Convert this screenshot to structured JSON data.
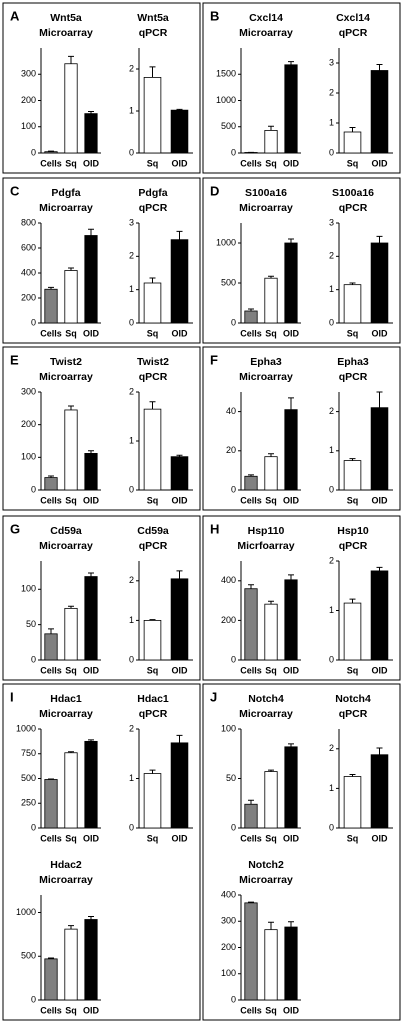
{
  "chart_data": [
    {
      "type": "bar",
      "panel_label": "A",
      "title": "Wnt5a",
      "subtitle": "Microarray",
      "categories": [
        "Cells",
        "Sq",
        "OID"
      ],
      "values": [
        5,
        340,
        150
      ],
      "errors": [
        2,
        28,
        8
      ],
      "colors": [
        "#808080",
        "#ffffff",
        "#000000"
      ],
      "ylim": [
        0,
        400
      ],
      "yticks": [
        0,
        100,
        200,
        300
      ]
    },
    {
      "type": "bar",
      "title": "Wnt5a",
      "subtitle": "qPCR",
      "categories": [
        "Sq",
        "OID"
      ],
      "values": [
        1.8,
        1.02
      ],
      "errors": [
        0.25,
        0.02
      ],
      "colors": [
        "#ffffff",
        "#000000"
      ],
      "ylim": [
        0,
        2.5
      ],
      "yticks": [
        0,
        1,
        2
      ]
    },
    {
      "type": "bar",
      "panel_label": "B",
      "title": "Cxcl14",
      "subtitle": "Microarray",
      "categories": [
        "Cells",
        "Sq",
        "OID"
      ],
      "values": [
        10,
        430,
        1680
      ],
      "errors": [
        2,
        80,
        60
      ],
      "colors": [
        "#808080",
        "#ffffff",
        "#000000"
      ],
      "ylim": [
        0,
        2000
      ],
      "yticks": [
        0,
        500,
        1000,
        1500
      ]
    },
    {
      "type": "bar",
      "title": "Cxcl14",
      "subtitle": "qPCR",
      "categories": [
        "Sq",
        "OID"
      ],
      "values": [
        0.7,
        2.75
      ],
      "errors": [
        0.15,
        0.2
      ],
      "colors": [
        "#ffffff",
        "#000000"
      ],
      "ylim": [
        0,
        3.5
      ],
      "yticks": [
        0,
        1,
        2,
        3
      ]
    },
    {
      "type": "bar",
      "panel_label": "C",
      "title": "Pdgfa",
      "subtitle": "Microarray",
      "categories": [
        "Cells",
        "Sq",
        "OID"
      ],
      "values": [
        270,
        420,
        700
      ],
      "errors": [
        15,
        20,
        50
      ],
      "colors": [
        "#808080",
        "#ffffff",
        "#000000"
      ],
      "ylim": [
        0,
        800
      ],
      "yticks": [
        0,
        200,
        400,
        600,
        800
      ]
    },
    {
      "type": "bar",
      "title": "Pdgfa",
      "subtitle": "qPCR",
      "categories": [
        "Sq",
        "OID"
      ],
      "values": [
        1.2,
        2.5
      ],
      "errors": [
        0.15,
        0.25
      ],
      "colors": [
        "#ffffff",
        "#000000"
      ],
      "ylim": [
        0,
        3
      ],
      "yticks": [
        0,
        1,
        2,
        3
      ]
    },
    {
      "type": "bar",
      "panel_label": "D",
      "title": "S100a16",
      "subtitle": "Microarray",
      "categories": [
        "Cells",
        "Sq",
        "OID"
      ],
      "values": [
        150,
        560,
        1000
      ],
      "errors": [
        25,
        25,
        50
      ],
      "colors": [
        "#808080",
        "#ffffff",
        "#000000"
      ],
      "ylim": [
        0,
        1250
      ],
      "yticks": [
        0,
        500,
        1000
      ]
    },
    {
      "type": "bar",
      "title": "S100a16",
      "subtitle": "qPCR",
      "categories": [
        "Sq",
        "OID"
      ],
      "values": [
        1.15,
        2.4
      ],
      "errors": [
        0.05,
        0.2
      ],
      "colors": [
        "#ffffff",
        "#000000"
      ],
      "ylim": [
        0,
        3
      ],
      "yticks": [
        0,
        1,
        2,
        3
      ]
    },
    {
      "type": "bar",
      "panel_label": "E",
      "title": "Twist2",
      "subtitle": "Microarray",
      "categories": [
        "Cells",
        "Sq",
        "OID"
      ],
      "values": [
        38,
        245,
        112
      ],
      "errors": [
        5,
        12,
        8
      ],
      "colors": [
        "#808080",
        "#ffffff",
        "#000000"
      ],
      "ylim": [
        0,
        300
      ],
      "yticks": [
        0,
        100,
        200,
        300
      ]
    },
    {
      "type": "bar",
      "title": "Twist2",
      "subtitle": "qPCR",
      "categories": [
        "Sq",
        "OID"
      ],
      "values": [
        1.65,
        0.68
      ],
      "errors": [
        0.15,
        0.03
      ],
      "colors": [
        "#ffffff",
        "#000000"
      ],
      "ylim": [
        0,
        2
      ],
      "yticks": [
        0,
        1,
        2
      ]
    },
    {
      "type": "bar",
      "panel_label": "F",
      "title": "Epha3",
      "subtitle": "Microarray",
      "categories": [
        "Cells",
        "Sq",
        "OID"
      ],
      "values": [
        7,
        17,
        41
      ],
      "errors": [
        0.7,
        1.5,
        6
      ],
      "colors": [
        "#808080",
        "#ffffff",
        "#000000"
      ],
      "ylim": [
        0,
        50
      ],
      "yticks": [
        0,
        20,
        40
      ]
    },
    {
      "type": "bar",
      "title": "Epha3",
      "subtitle": "qPCR",
      "categories": [
        "Sq",
        "OID"
      ],
      "values": [
        0.75,
        2.1
      ],
      "errors": [
        0.05,
        0.4
      ],
      "colors": [
        "#ffffff",
        "#000000"
      ],
      "ylim": [
        0,
        2.5
      ],
      "yticks": [
        0,
        1,
        2
      ]
    },
    {
      "type": "bar",
      "panel_label": "G",
      "title": "Cd59a",
      "subtitle": "Microarray",
      "categories": [
        "Cells",
        "Sq",
        "OID"
      ],
      "values": [
        37,
        73,
        118
      ],
      "errors": [
        7,
        3,
        5
      ],
      "colors": [
        "#808080",
        "#ffffff",
        "#000000"
      ],
      "ylim": [
        0,
        140
      ],
      "yticks": [
        0,
        50,
        100
      ]
    },
    {
      "type": "bar",
      "title": "Cd59a",
      "subtitle": "qPCR",
      "categories": [
        "Sq",
        "OID"
      ],
      "values": [
        1.0,
        2.05
      ],
      "errors": [
        0.02,
        0.2
      ],
      "colors": [
        "#ffffff",
        "#000000"
      ],
      "ylim": [
        0,
        2.5
      ],
      "yticks": [
        0,
        1,
        2
      ]
    },
    {
      "type": "bar",
      "panel_label": "H",
      "title": "Hsp110",
      "subtitle": "Micrfoarray",
      "categories": [
        "Cells",
        "Sq",
        "OID"
      ],
      "values": [
        360,
        282,
        405
      ],
      "errors": [
        20,
        15,
        25
      ],
      "colors": [
        "#808080",
        "#ffffff",
        "#000000"
      ],
      "ylim": [
        0,
        500
      ],
      "yticks": [
        0,
        200,
        400
      ]
    },
    {
      "type": "bar",
      "title": "Hsp10",
      "subtitle": "qPCR",
      "categories": [
        "Sq",
        "OID"
      ],
      "values": [
        1.15,
        1.8
      ],
      "errors": [
        0.08,
        0.07
      ],
      "colors": [
        "#ffffff",
        "#000000"
      ],
      "ylim": [
        0,
        2
      ],
      "yticks": [
        0,
        1,
        2
      ]
    },
    {
      "type": "bar",
      "panel_label": "I",
      "title": "Hdac1",
      "subtitle": "Microarray",
      "categories": [
        "Cells",
        "Sq",
        "OID"
      ],
      "values": [
        490,
        760,
        875
      ],
      "errors": [
        5,
        10,
        15
      ],
      "colors": [
        "#808080",
        "#ffffff",
        "#000000"
      ],
      "ylim": [
        0,
        1000
      ],
      "yticks": [
        0,
        250,
        500,
        750,
        1000
      ]
    },
    {
      "type": "bar",
      "title": "Hdac1",
      "subtitle": "qPCR",
      "categories": [
        "Sq",
        "OID"
      ],
      "values": [
        1.1,
        1.72
      ],
      "errors": [
        0.07,
        0.15
      ],
      "colors": [
        "#ffffff",
        "#000000"
      ],
      "ylim": [
        0,
        2
      ],
      "yticks": [
        0,
        1,
        2
      ]
    },
    {
      "type": "bar",
      "title": "Hdac2",
      "subtitle": "Microarray",
      "categories": [
        "Cells",
        "Sq",
        "OID"
      ],
      "values": [
        470,
        810,
        920
      ],
      "errors": [
        10,
        40,
        35
      ],
      "colors": [
        "#808080",
        "#ffffff",
        "#000000"
      ],
      "ylim": [
        0,
        1200
      ],
      "yticks": [
        0,
        500,
        1000
      ]
    },
    {
      "type": "bar",
      "panel_label": "J",
      "title": "Notch4",
      "subtitle": "Microarray",
      "categories": [
        "Cells",
        "Sq",
        "OID"
      ],
      "values": [
        24,
        57,
        82
      ],
      "errors": [
        4,
        1.5,
        3
      ],
      "colors": [
        "#808080",
        "#ffffff",
        "#000000"
      ],
      "ylim": [
        0,
        100
      ],
      "yticks": [
        0,
        50,
        100
      ]
    },
    {
      "type": "bar",
      "title": "Notch4",
      "subtitle": "qPCR",
      "categories": [
        "Sq",
        "OID"
      ],
      "values": [
        1.3,
        1.85
      ],
      "errors": [
        0.05,
        0.17
      ],
      "colors": [
        "#ffffff",
        "#000000"
      ],
      "ylim": [
        0,
        2.5
      ],
      "yticks": [
        0,
        1,
        2
      ]
    },
    {
      "type": "bar",
      "title": "Notch2",
      "subtitle": "Microarray",
      "categories": [
        "Cells",
        "Sq",
        "OID"
      ],
      "values": [
        370,
        268,
        278
      ],
      "errors": [
        3,
        28,
        20
      ],
      "colors": [
        "#808080",
        "#ffffff",
        "#000000"
      ],
      "ylim": [
        0,
        400
      ],
      "yticks": [
        0,
        100,
        200,
        300,
        400
      ]
    }
  ]
}
